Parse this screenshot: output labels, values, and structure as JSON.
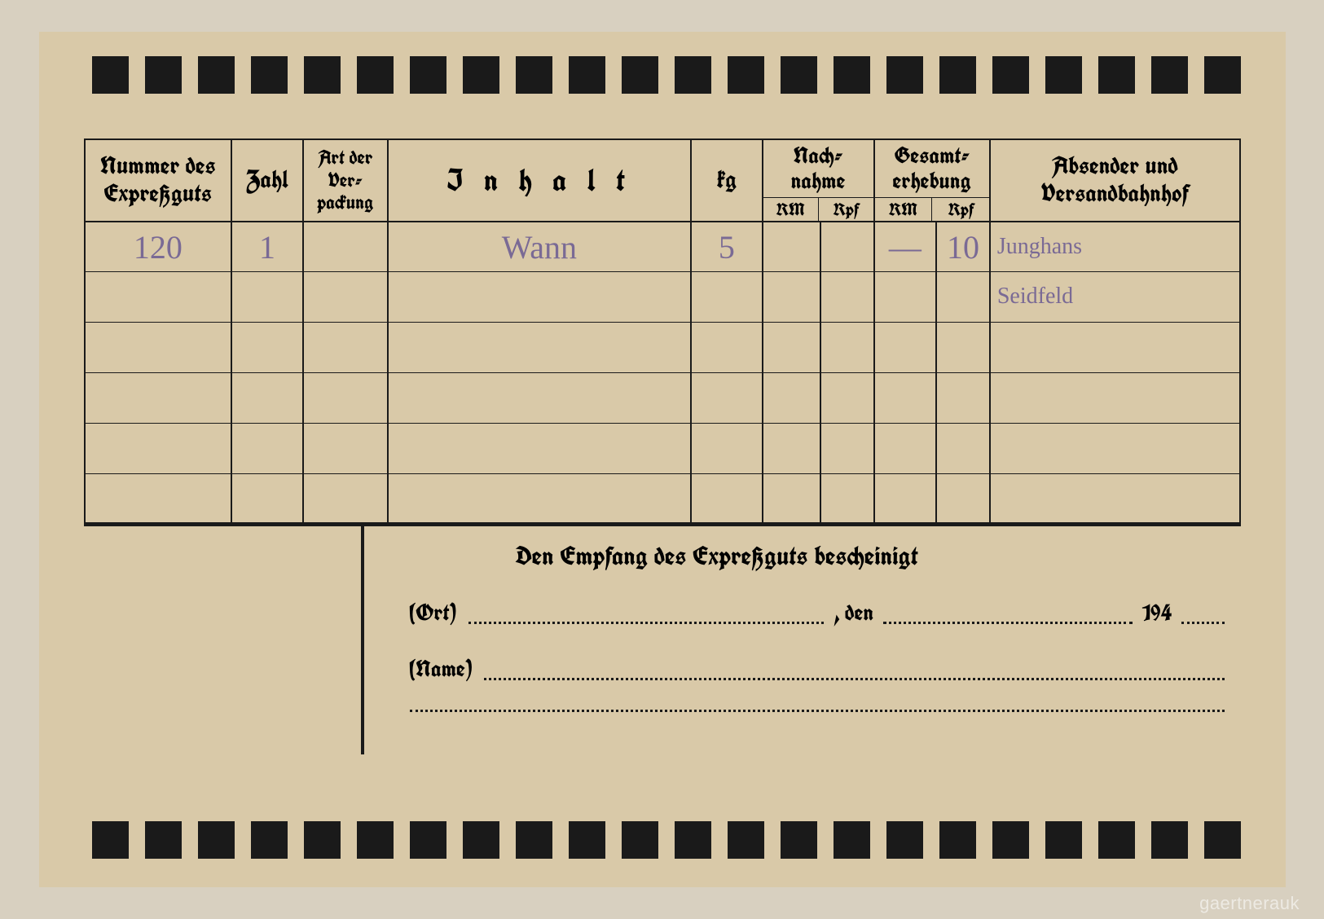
{
  "layout": {
    "card_bg": "#d9c9a8",
    "page_bg": "#d8d0c0",
    "ink": "#1a1a1a",
    "pencil": "#7a6a95",
    "top_squares": 22,
    "bottom_squares": 22,
    "square_size": 46
  },
  "headers": {
    "nummer": "Nummer des Expreßguts",
    "zahl": "Zahl",
    "art": "Art der Ver= packung",
    "inhalt": "I n h a l t",
    "kg": "kg",
    "nachnahme": "Nach= nahme",
    "gesamt": "Gesamt= erhebung",
    "absender": "Absender und Versandbahnhof",
    "rm": "RM",
    "rpf": "Rpf"
  },
  "rows": [
    {
      "nummer": "120",
      "zahl": "1",
      "art": "",
      "inhalt": "Wann",
      "kg": "5",
      "nach_rm": "",
      "nach_rpf": "",
      "ges_rm": "—",
      "ges_rpf": "10",
      "absender": "Junghans"
    },
    {
      "nummer": "",
      "zahl": "",
      "art": "",
      "inhalt": "",
      "kg": "",
      "nach_rm": "",
      "nach_rpf": "",
      "ges_rm": "",
      "ges_rpf": "",
      "absender": "Seidfeld"
    },
    {
      "nummer": "",
      "zahl": "",
      "art": "",
      "inhalt": "",
      "kg": "",
      "nach_rm": "",
      "nach_rpf": "",
      "ges_rm": "",
      "ges_rpf": "",
      "absender": ""
    },
    {
      "nummer": "",
      "zahl": "",
      "art": "",
      "inhalt": "",
      "kg": "",
      "nach_rm": "",
      "nach_rpf": "",
      "ges_rm": "",
      "ges_rpf": "",
      "absender": ""
    },
    {
      "nummer": "",
      "zahl": "",
      "art": "",
      "inhalt": "",
      "kg": "",
      "nach_rm": "",
      "nach_rpf": "",
      "ges_rm": "",
      "ges_rpf": "",
      "absender": ""
    },
    {
      "nummer": "",
      "zahl": "",
      "art": "",
      "inhalt": "",
      "kg": "",
      "nach_rm": "",
      "nach_rpf": "",
      "ges_rm": "",
      "ges_rpf": "",
      "absender": ""
    }
  ],
  "receipt": {
    "title": "Den Empfang des Expreßguts bescheinigt",
    "ort_label": "(Ort)",
    "den": ", den",
    "year_prefix": "194",
    "name_label": "(Name)"
  },
  "watermark": "gaertnerauk"
}
